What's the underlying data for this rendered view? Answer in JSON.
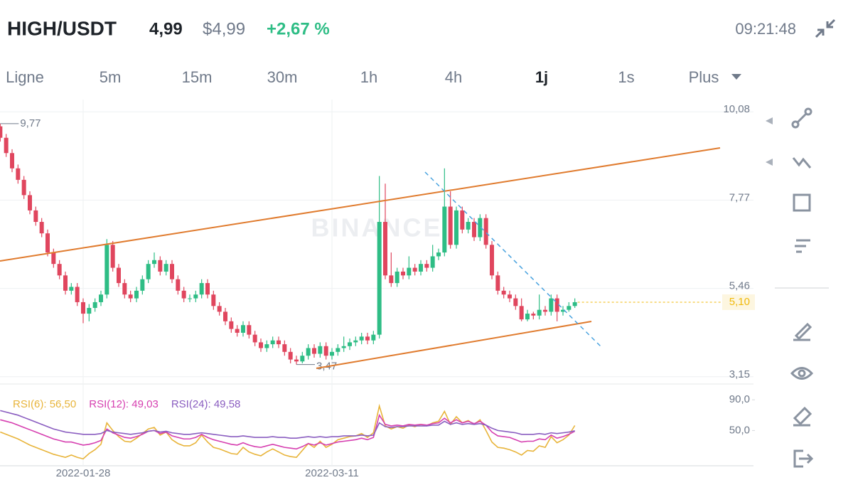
{
  "header": {
    "symbol": "HIGH/USDT",
    "price": "4,99",
    "usd_price": "$4,99",
    "change": "+2,67 %",
    "time": "09:21:48"
  },
  "tabs": [
    "Ligne",
    "5m",
    "15m",
    "30m",
    "1h",
    "4h",
    "1j",
    "1s",
    "Plus"
  ],
  "selected_tab": "1j",
  "chart_data": [
    {
      "type": "candlestick",
      "watermark": "BINANCE",
      "categories": [
        null,
        null,
        null,
        null,
        null,
        null,
        null,
        null,
        null,
        null,
        null,
        null,
        null,
        null,
        "2022-01-28",
        null,
        null,
        null,
        null,
        null,
        null,
        null,
        null,
        null,
        null,
        null,
        null,
        null,
        null,
        null,
        null,
        null,
        null,
        null,
        null,
        null,
        null,
        null,
        null,
        null,
        null,
        null,
        null,
        null,
        null,
        null,
        null,
        null,
        null,
        null,
        null,
        null,
        null,
        null,
        null,
        null,
        "2022-03-11",
        null,
        null,
        null,
        null,
        null,
        null,
        null,
        null,
        null,
        null,
        null,
        null,
        null,
        null,
        null,
        null,
        null,
        null,
        null,
        null,
        null,
        null,
        null,
        null,
        null,
        null,
        null,
        null,
        null,
        null,
        null,
        null,
        null,
        null,
        null,
        null,
        null,
        null,
        null,
        null,
        null
      ],
      "open": [
        9.7,
        9.4,
        9.0,
        8.6,
        8.3,
        7.9,
        7.5,
        7.2,
        6.9,
        6.4,
        6.1,
        5.8,
        5.4,
        5.5,
        5.1,
        4.8,
        4.95,
        5.1,
        5.3,
        6.6,
        6.0,
        5.6,
        5.3,
        5.2,
        5.4,
        5.7,
        6.1,
        6.2,
        5.9,
        6.1,
        5.7,
        5.4,
        5.2,
        5.2,
        5.3,
        5.6,
        5.3,
        5.0,
        4.85,
        4.6,
        4.4,
        4.3,
        4.5,
        4.25,
        4.05,
        3.9,
        4.0,
        4.1,
        4.0,
        3.8,
        3.6,
        3.55,
        3.7,
        3.9,
        3.75,
        3.95,
        3.7,
        3.8,
        3.9,
        3.95,
        4.05,
        4.1,
        4.2,
        4.1,
        4.25,
        7.2,
        5.8,
        5.6,
        5.9,
        5.8,
        6.0,
        5.9,
        6.1,
        6.0,
        6.3,
        6.4,
        7.6,
        6.6,
        7.5,
        7.0,
        7.2,
        6.8,
        7.3,
        6.6,
        5.8,
        5.4,
        5.3,
        5.2,
        5.0,
        4.65,
        4.8,
        4.75,
        4.9,
        4.85,
        5.2,
        4.85,
        4.9,
        5.0
      ],
      "high": [
        9.77,
        9.5,
        9.1,
        8.7,
        8.4,
        8.0,
        7.6,
        7.3,
        7.0,
        6.5,
        6.2,
        5.9,
        5.6,
        5.6,
        5.2,
        5.05,
        5.2,
        5.4,
        6.75,
        6.7,
        6.1,
        5.7,
        5.4,
        5.5,
        5.8,
        6.2,
        6.4,
        6.3,
        6.2,
        6.2,
        5.8,
        5.5,
        5.3,
        5.4,
        5.7,
        5.7,
        5.4,
        5.1,
        4.95,
        4.7,
        4.5,
        4.6,
        4.6,
        4.35,
        4.15,
        4.1,
        4.2,
        4.2,
        4.1,
        3.9,
        3.7,
        3.8,
        4.0,
        4.0,
        4.05,
        4.05,
        3.9,
        4.0,
        4.2,
        4.15,
        4.2,
        4.3,
        4.3,
        4.35,
        8.4,
        8.2,
        6.4,
        6.0,
        6.0,
        6.3,
        6.1,
        6.2,
        6.2,
        6.6,
        6.5,
        8.6,
        8.0,
        7.6,
        7.6,
        7.3,
        7.3,
        7.4,
        7.4,
        6.7,
        5.9,
        5.5,
        5.4,
        5.3,
        5.2,
        4.9,
        4.85,
        5.3,
        5.0,
        5.3,
        5.3,
        5.0,
        5.1,
        5.2
      ],
      "low": [
        9.3,
        8.9,
        8.5,
        8.2,
        7.8,
        7.4,
        7.1,
        6.8,
        6.3,
        6.0,
        5.7,
        5.3,
        5.3,
        5.0,
        4.55,
        4.6,
        4.85,
        5.0,
        5.2,
        5.9,
        5.5,
        5.2,
        5.1,
        5.1,
        5.3,
        5.6,
        6.0,
        5.8,
        5.8,
        5.6,
        5.3,
        5.1,
        5.1,
        5.1,
        5.2,
        5.2,
        4.9,
        4.75,
        4.5,
        4.3,
        4.2,
        4.2,
        4.15,
        3.95,
        3.8,
        3.8,
        3.9,
        3.9,
        3.7,
        3.5,
        3.47,
        3.5,
        3.6,
        3.65,
        3.65,
        3.6,
        3.6,
        3.7,
        3.8,
        3.85,
        3.95,
        4.0,
        4.0,
        4.0,
        4.15,
        5.7,
        5.5,
        5.5,
        5.7,
        5.7,
        5.8,
        5.8,
        5.9,
        5.9,
        6.2,
        6.3,
        6.5,
        6.5,
        6.9,
        6.9,
        6.7,
        6.7,
        6.5,
        5.7,
        5.3,
        5.2,
        5.1,
        4.9,
        4.6,
        4.6,
        4.65,
        4.65,
        4.75,
        4.75,
        4.6,
        4.75,
        4.85,
        4.95
      ],
      "close": [
        9.4,
        9.0,
        8.6,
        8.3,
        7.9,
        7.5,
        7.2,
        6.9,
        6.4,
        6.1,
        5.8,
        5.4,
        5.5,
        5.1,
        4.8,
        4.95,
        5.1,
        5.3,
        6.6,
        6.0,
        5.6,
        5.3,
        5.2,
        5.4,
        5.7,
        6.1,
        6.2,
        5.9,
        6.1,
        5.7,
        5.4,
        5.2,
        5.2,
        5.3,
        5.6,
        5.3,
        5.0,
        4.85,
        4.6,
        4.4,
        4.3,
        4.5,
        4.25,
        4.05,
        3.9,
        4.0,
        4.1,
        4.0,
        3.8,
        3.6,
        3.55,
        3.7,
        3.9,
        3.75,
        3.95,
        3.7,
        3.8,
        3.9,
        3.95,
        4.05,
        4.1,
        4.2,
        4.1,
        4.25,
        7.2,
        5.8,
        5.6,
        5.9,
        5.8,
        6.0,
        5.9,
        6.1,
        6.0,
        6.3,
        6.4,
        7.6,
        6.6,
        7.5,
        7.0,
        7.2,
        6.8,
        7.3,
        6.6,
        5.8,
        5.4,
        5.3,
        5.2,
        5.0,
        4.65,
        4.8,
        4.75,
        4.9,
        4.85,
        5.2,
        4.85,
        4.9,
        5.0,
        5.1
      ],
      "up_color": "#2ebd85",
      "down_color": "#e0465e",
      "ylim": [
        2.96,
        10.4
      ],
      "yticks": [
        {
          "value": 3.15,
          "label": "3,15"
        },
        {
          "value": 5.46,
          "label": "5,46"
        },
        {
          "value": 7.77,
          "label": "7,77"
        },
        {
          "value": 10.08,
          "label": "10,08"
        }
      ],
      "grid": true,
      "high_marker": {
        "value": 9.77,
        "label": "9,77"
      },
      "low_marker": {
        "value": 3.47,
        "label": "3,47"
      },
      "last_price": {
        "value": 5.1,
        "label": "5,10"
      }
    },
    {
      "type": "line",
      "series": [
        {
          "name": "RSI(6)",
          "color": "#e8b43a",
          "last_label": "56,50",
          "values": [
            48,
            45,
            42,
            39,
            35,
            31,
            28,
            25,
            22,
            19,
            17,
            15,
            18,
            15,
            13,
            20,
            25,
            32,
            60,
            50,
            42,
            36,
            35,
            40,
            46,
            52,
            54,
            44,
            48,
            38,
            33,
            30,
            30,
            34,
            44,
            35,
            28,
            26,
            23,
            20,
            19,
            28,
            22,
            19,
            17,
            22,
            26,
            22,
            18,
            16,
            15,
            24,
            33,
            28,
            36,
            28,
            32,
            38,
            40,
            42,
            43,
            46,
            41,
            47,
            82,
            56,
            52,
            55,
            53,
            57,
            55,
            58,
            56,
            60,
            62,
            75,
            58,
            68,
            60,
            63,
            58,
            64,
            50,
            35,
            28,
            27,
            25,
            22,
            18,
            24,
            23,
            30,
            28,
            42,
            34,
            38,
            44,
            56.5
          ]
        },
        {
          "name": "RSI(12)",
          "color": "#d63fb0",
          "last_label": "49,03",
          "values": [
            64,
            62,
            60,
            57,
            54,
            51,
            48,
            45,
            42,
            39,
            37,
            35,
            35,
            33,
            31,
            32,
            34,
            37,
            52,
            47,
            44,
            41,
            40,
            42,
            45,
            49,
            50,
            46,
            48,
            43,
            41,
            39,
            39,
            41,
            45,
            41,
            38,
            36,
            34,
            32,
            31,
            34,
            31,
            29,
            28,
            30,
            32,
            30,
            28,
            27,
            26,
            29,
            33,
            31,
            34,
            31,
            33,
            35,
            36,
            37,
            38,
            40,
            38,
            41,
            70,
            58,
            56,
            57,
            56,
            58,
            57,
            58,
            57,
            59,
            60,
            66,
            60,
            64,
            60,
            62,
            59,
            62,
            57,
            48,
            43,
            42,
            41,
            38,
            35,
            36,
            36,
            39,
            38,
            44,
            40,
            42,
            45,
            49.03
          ]
        },
        {
          "name": "RSI(24)",
          "color": "#8a5dc0",
          "last_label": "49,58",
          "values": [
            76,
            74,
            72,
            70,
            67,
            64,
            61,
            58,
            55,
            52,
            50,
            48,
            47,
            46,
            45,
            45,
            45,
            46,
            50,
            48,
            47,
            46,
            45,
            46,
            47,
            49,
            50,
            48,
            49,
            47,
            46,
            45,
            45,
            46,
            47,
            46,
            45,
            44,
            43,
            42,
            42,
            43,
            42,
            41,
            41,
            41,
            42,
            41,
            41,
            40,
            40,
            41,
            42,
            41,
            42,
            41,
            42,
            42,
            43,
            43,
            43,
            44,
            43,
            44,
            60,
            55,
            54,
            55,
            55,
            56,
            56,
            56,
            56,
            57,
            57,
            62,
            58,
            60,
            58,
            59,
            58,
            59,
            57,
            53,
            50,
            49,
            48,
            47,
            45,
            45,
            45,
            46,
            45,
            47,
            46,
            47,
            48,
            49.58
          ]
        }
      ],
      "ylim": [
        4,
        106
      ],
      "yticks": [
        {
          "value": 50,
          "label": "50,0"
        },
        {
          "value": 90,
          "label": "90,0"
        }
      ]
    }
  ]
}
